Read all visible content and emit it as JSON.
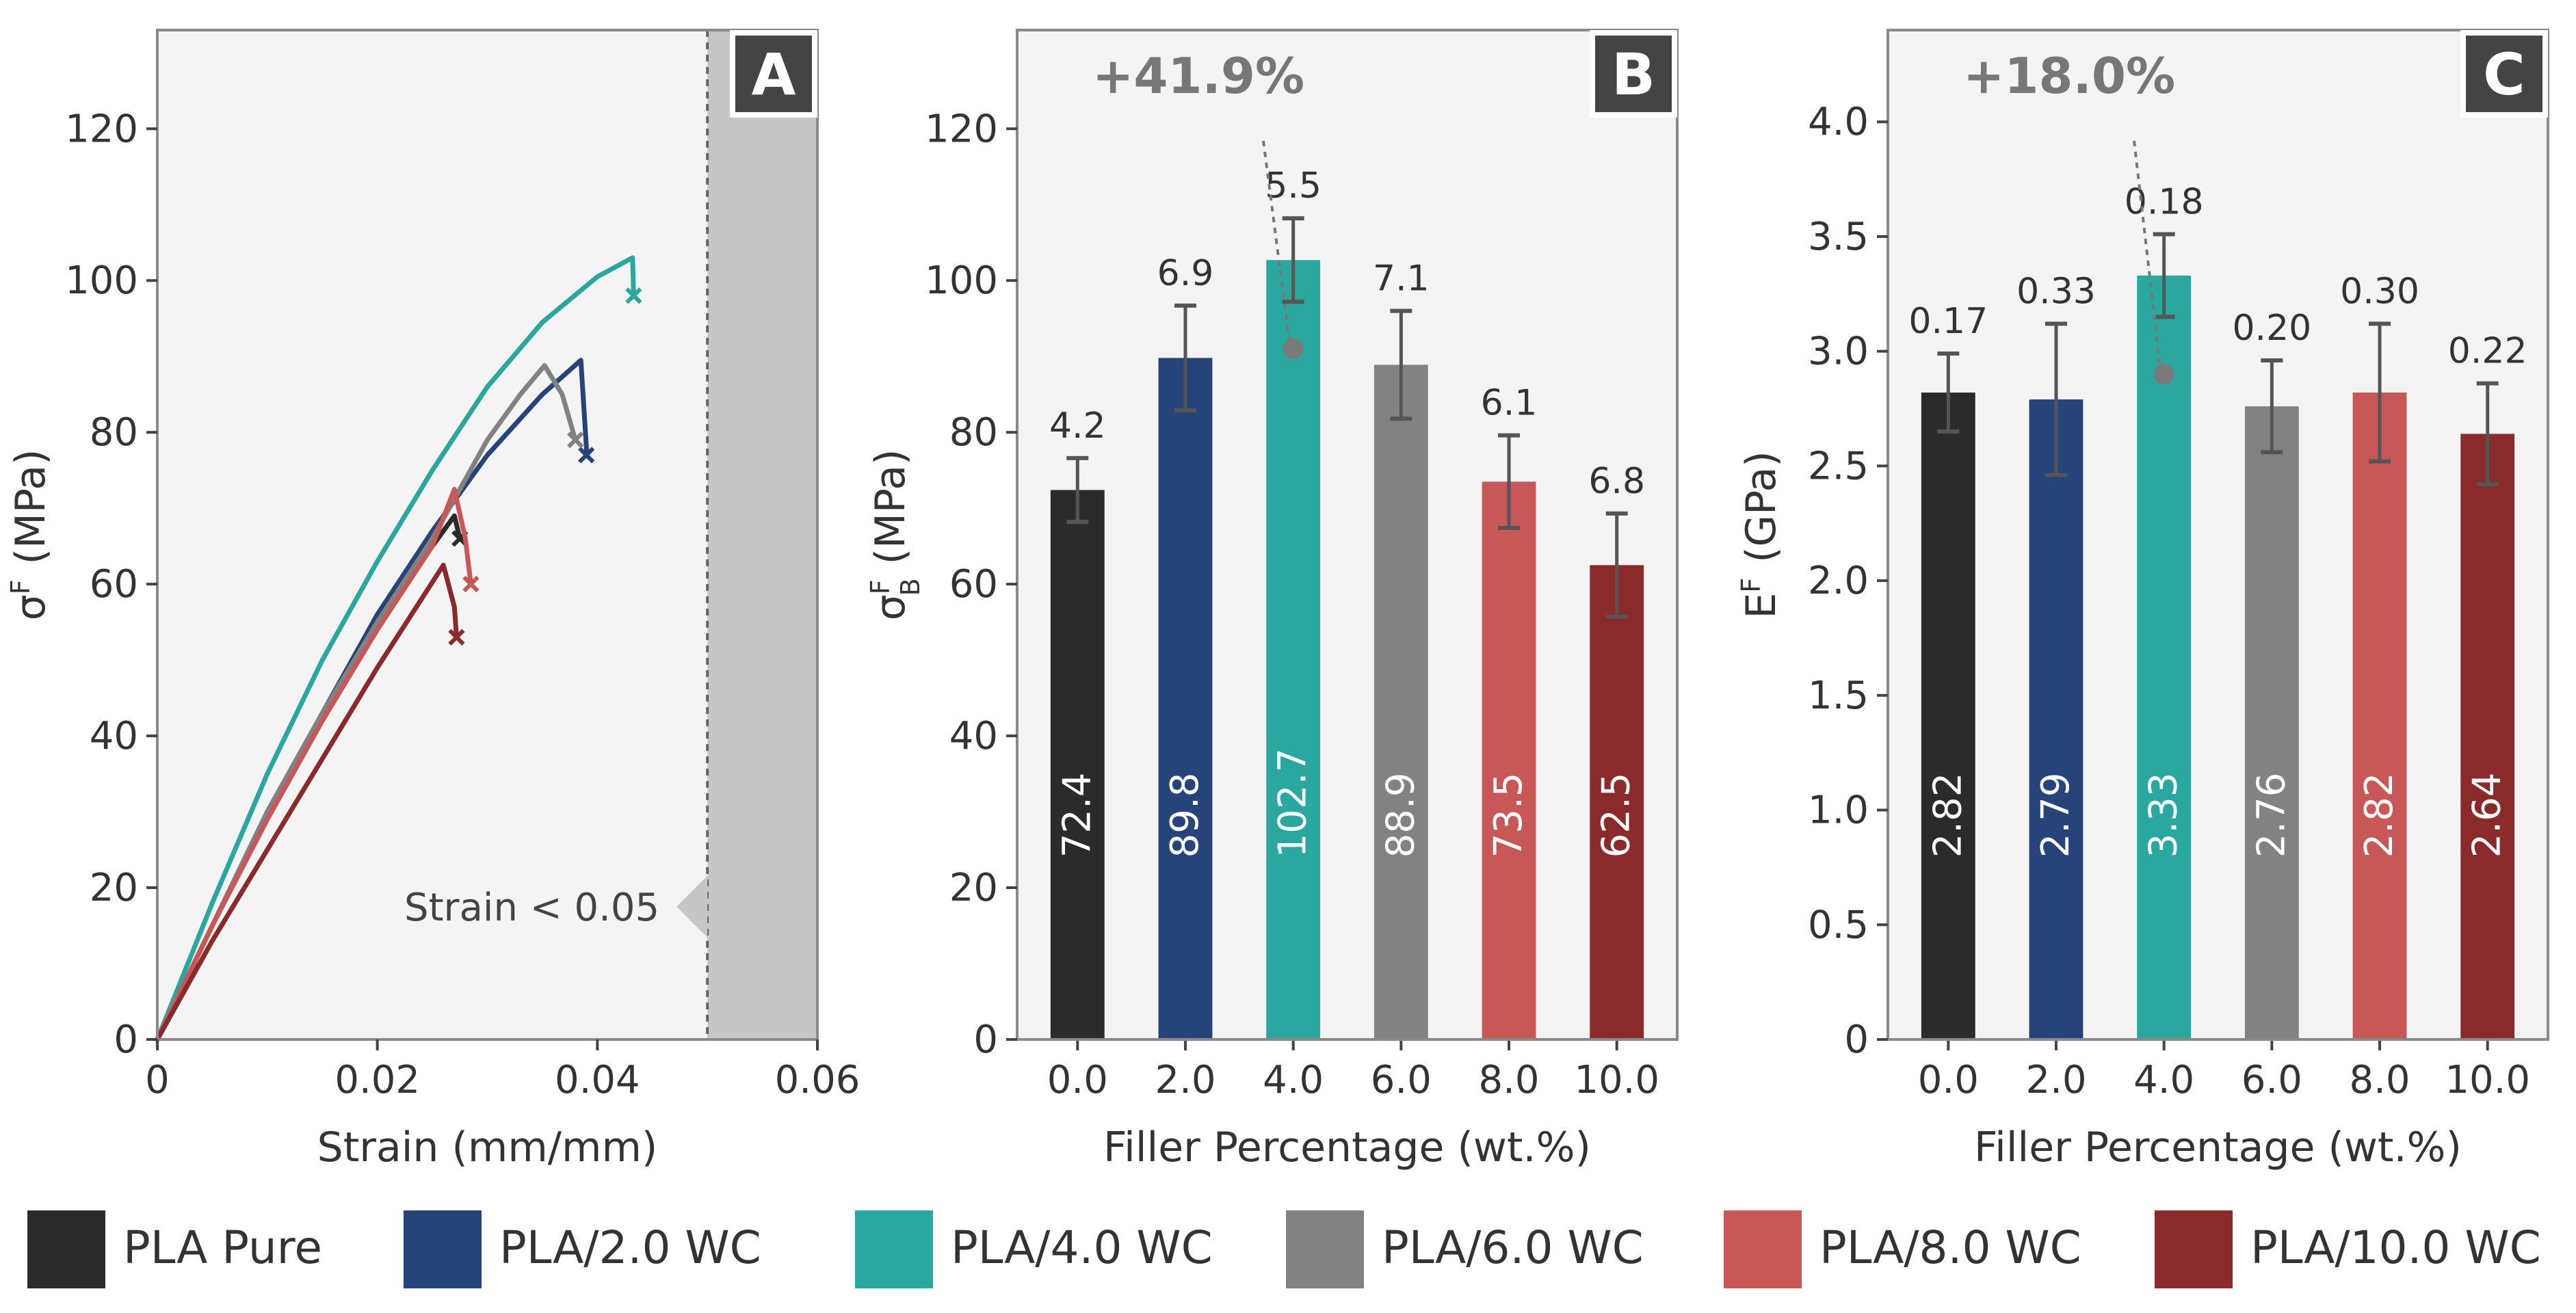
{
  "colors": {
    "pla_pure": "#2b2b2b",
    "pla_2": "#26447a",
    "pla_4": "#2aa8a0",
    "pla_6": "#828282",
    "pla_8": "#c85858",
    "pla_10": "#8b2a2a",
    "panel_bg": "#f4f4f4",
    "shade": "#c6c6c6",
    "axis": "#444444",
    "annotation": "#777777",
    "badge_bg": "#444444"
  },
  "legend": [
    {
      "label": "PLA Pure",
      "color": "#2b2b2b"
    },
    {
      "label": "PLA/2.0 WC",
      "color": "#26447a"
    },
    {
      "label": "PLA/4.0 WC",
      "color": "#2aa8a0"
    },
    {
      "label": "PLA/6.0 WC",
      "color": "#828282"
    },
    {
      "label": "PLA/8.0 WC",
      "color": "#c85858"
    },
    {
      "label": "PLA/10.0 WC",
      "color": "#8b2a2a"
    }
  ],
  "chart_data": [
    {
      "panel": "A",
      "type": "line",
      "xlabel": "Strain (mm/mm)",
      "ylabel_main": "σ",
      "ylabel_sup": "F",
      "ylabel_unit": "(MPa)",
      "xlim": [
        0,
        0.06
      ],
      "ylim": [
        0,
        133
      ],
      "xticks": [
        0,
        0.02,
        0.04,
        0.06
      ],
      "xtick_labels": [
        "0",
        "0.02",
        "0.04",
        "0.06"
      ],
      "yticks": [
        0,
        20,
        40,
        60,
        80,
        100,
        120
      ],
      "ytick_labels": [
        "0",
        "20",
        "40",
        "60",
        "80",
        "100",
        "120"
      ],
      "threshold_x": 0.05,
      "shade_range": [
        0.05,
        0.06
      ],
      "annotation": "Strain < 0.05",
      "grid": false,
      "series": [
        {
          "name": "PLA Pure",
          "points": [
            [
              0,
              0
            ],
            [
              0.005,
              15
            ],
            [
              0.01,
              30
            ],
            [
              0.015,
              43
            ],
            [
              0.02,
              55
            ],
            [
              0.025,
              65
            ],
            [
              0.027,
              69
            ],
            [
              0.0275,
              66
            ]
          ]
        },
        {
          "name": "PLA/2.0 WC",
          "points": [
            [
              0,
              0
            ],
            [
              0.005,
              15
            ],
            [
              0.01,
              30
            ],
            [
              0.015,
              43
            ],
            [
              0.02,
              56
            ],
            [
              0.025,
              67
            ],
            [
              0.03,
              77
            ],
            [
              0.035,
              85
            ],
            [
              0.0385,
              89.5
            ],
            [
              0.039,
              78
            ],
            [
              0.039,
              77
            ]
          ]
        },
        {
          "name": "PLA/4.0 WC",
          "points": [
            [
              0,
              0
            ],
            [
              0.005,
              18
            ],
            [
              0.01,
              35
            ],
            [
              0.015,
              50
            ],
            [
              0.02,
              63
            ],
            [
              0.025,
              75
            ],
            [
              0.03,
              86
            ],
            [
              0.035,
              94.5
            ],
            [
              0.04,
              100.5
            ],
            [
              0.0432,
              103
            ],
            [
              0.0433,
              98
            ]
          ]
        },
        {
          "name": "PLA/6.0 WC",
          "points": [
            [
              0,
              0
            ],
            [
              0.005,
              15
            ],
            [
              0.01,
              30
            ],
            [
              0.015,
              43
            ],
            [
              0.02,
              55
            ],
            [
              0.025,
              66
            ],
            [
              0.03,
              79
            ],
            [
              0.033,
              85
            ],
            [
              0.0352,
              88.8
            ],
            [
              0.0368,
              85
            ],
            [
              0.038,
              79
            ]
          ]
        },
        {
          "name": "PLA/8.0 WC",
          "points": [
            [
              0,
              0
            ],
            [
              0.005,
              15
            ],
            [
              0.01,
              29
            ],
            [
              0.015,
              42
            ],
            [
              0.02,
              54
            ],
            [
              0.025,
              65
            ],
            [
              0.027,
              72.5
            ],
            [
              0.028,
              66
            ],
            [
              0.0285,
              60
            ]
          ]
        },
        {
          "name": "PLA/10.0 WC",
          "points": [
            [
              0,
              0
            ],
            [
              0.005,
              13
            ],
            [
              0.01,
              25
            ],
            [
              0.015,
              37
            ],
            [
              0.02,
              49
            ],
            [
              0.024,
              58
            ],
            [
              0.026,
              62.5
            ],
            [
              0.027,
              57
            ],
            [
              0.0272,
              53
            ]
          ]
        }
      ]
    },
    {
      "panel": "B",
      "type": "bar",
      "xlabel": "Filler Percentage (wt.%)",
      "ylabel_main": "σ",
      "ylabel_sup": "F",
      "ylabel_sub": "B",
      "ylabel_unit": "(MPa)",
      "categories": [
        "0.0",
        "2.0",
        "4.0",
        "6.0",
        "8.0",
        "10.0"
      ],
      "values": [
        72.4,
        89.8,
        102.7,
        88.9,
        73.5,
        62.5
      ],
      "value_labels": [
        "72.4",
        "89.8",
        "102.7",
        "88.9",
        "73.5",
        "62.5"
      ],
      "errors": [
        4.2,
        6.9,
        5.5,
        7.1,
        6.1,
        6.8
      ],
      "error_labels": [
        "4.2",
        "6.9",
        "5.5",
        "7.1",
        "6.1",
        "6.8"
      ],
      "ylim": [
        0,
        133
      ],
      "yticks": [
        0,
        20,
        40,
        60,
        80,
        100,
        120
      ],
      "ytick_labels": [
        "0",
        "20",
        "40",
        "60",
        "80",
        "100",
        "120"
      ],
      "improvement": "+41.9%",
      "improvement_point_value": 91,
      "grid": false
    },
    {
      "panel": "C",
      "type": "bar",
      "xlabel": "Filler Percentage (wt.%)",
      "ylabel_main": "E",
      "ylabel_sup": "F",
      "ylabel_unit": "(GPa)",
      "categories": [
        "0.0",
        "2.0",
        "4.0",
        "6.0",
        "8.0",
        "10.0"
      ],
      "values": [
        2.82,
        2.79,
        3.33,
        2.76,
        2.82,
        2.64
      ],
      "value_labels": [
        "2.82",
        "2.79",
        "3.33",
        "2.76",
        "2.82",
        "2.64"
      ],
      "errors": [
        0.17,
        0.33,
        0.18,
        0.2,
        0.3,
        0.22
      ],
      "error_labels": [
        "0.17",
        "0.33",
        "0.18",
        "0.20",
        "0.30",
        "0.22"
      ],
      "ylim": [
        0,
        4.4
      ],
      "yticks": [
        0,
        0.5,
        1.0,
        1.5,
        2.0,
        2.5,
        3.0,
        3.5,
        4.0
      ],
      "ytick_labels": [
        "0",
        "0.5",
        "1.0",
        "1.5",
        "2.0",
        "2.5",
        "3.0",
        "3.5",
        "4.0"
      ],
      "improvement": "+18.0%",
      "improvement_point_value": 2.9,
      "grid": false
    }
  ]
}
